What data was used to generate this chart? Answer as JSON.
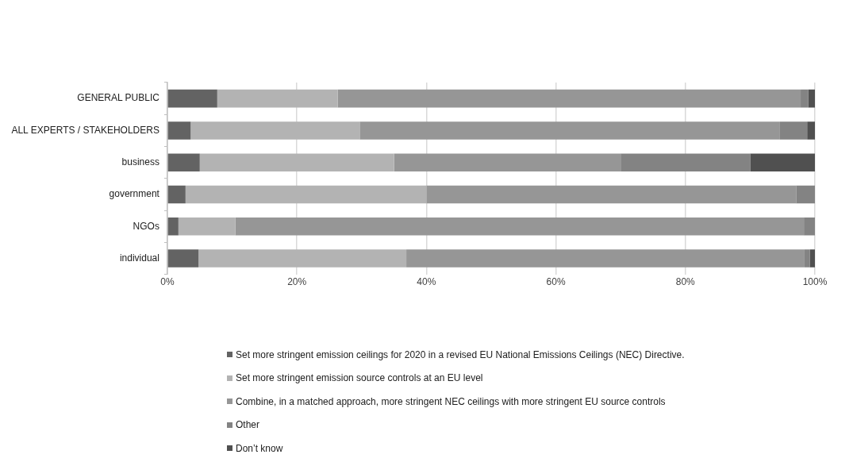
{
  "chart_data": {
    "type": "bar",
    "orientation": "horizontal",
    "stacked": true,
    "categories": [
      "GENERAL PUBLIC",
      "ALL EXPERTS / STAKEHOLDERS",
      "business",
      "government",
      "NGOs",
      "individual"
    ],
    "series": [
      {
        "name": "Set more stringent emission ceilings for 2020 in a revised EU National Emissions Ceilings (NEC) Directive.",
        "color": "#636363",
        "values": [
          7.7,
          3.6,
          5,
          2.8,
          1.7,
          4.8
        ]
      },
      {
        "name": "Set more stringent emission source controls at an EU level",
        "color": "#b3b3b3",
        "values": [
          18.6,
          26.1,
          30,
          37.2,
          8.8,
          32.1
        ]
      },
      {
        "name": "Combine, in a matched approach, more stringent NEC ceilings with more stringent EU source controls",
        "color": "#969696",
        "values": [
          71.5,
          64.9,
          35,
          57.1,
          87.8,
          61.5
        ]
      },
      {
        "name": "Other",
        "color": "#838383",
        "values": [
          1.2,
          4.2,
          20,
          2.9,
          1.7,
          0.8
        ]
      },
      {
        "name": "Don’t know",
        "color": "#505050",
        "values": [
          1.0,
          1.2,
          10,
          0,
          0,
          0.8
        ]
      }
    ],
    "xlim": [
      0,
      100
    ],
    "xticks": [
      {
        "value": 0,
        "label": "0%"
      },
      {
        "value": 20,
        "label": "20%"
      },
      {
        "value": 40,
        "label": "40%"
      },
      {
        "value": 60,
        "label": "60%"
      },
      {
        "value": 80,
        "label": "80%"
      },
      {
        "value": 100,
        "label": "100%"
      }
    ],
    "grid": "x",
    "legend": "bottom"
  }
}
